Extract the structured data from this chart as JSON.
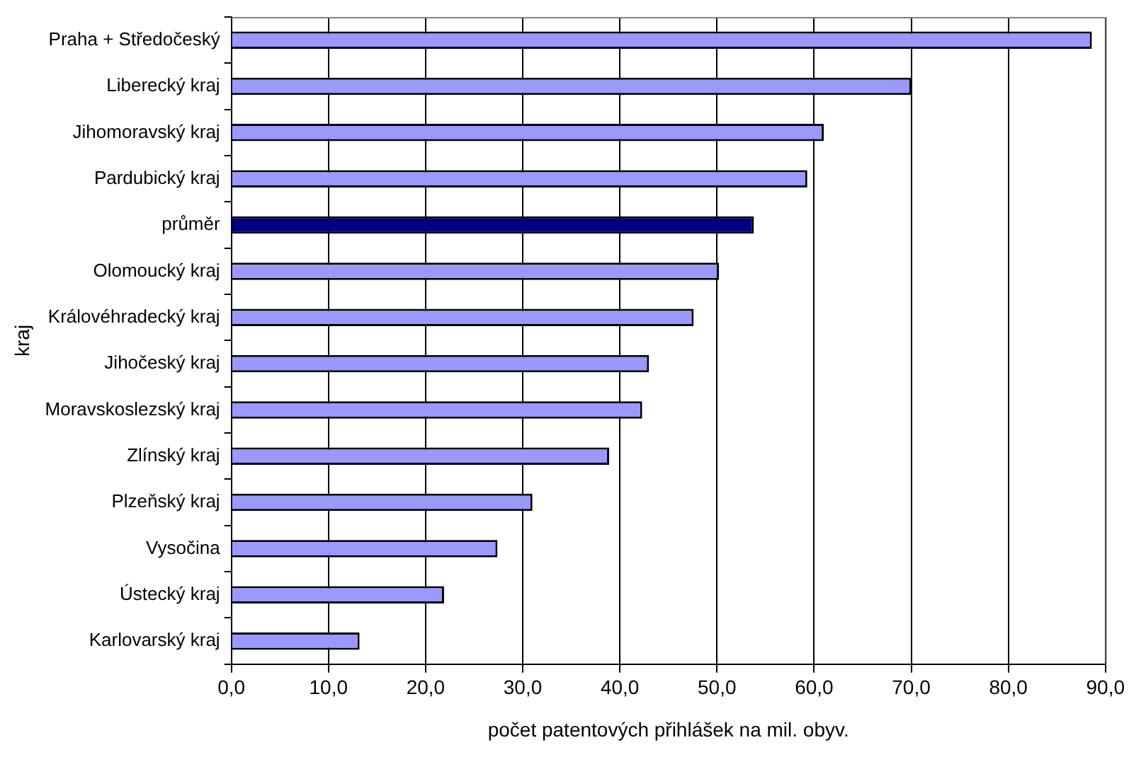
{
  "chart_data": {
    "type": "bar",
    "orientation": "horizontal",
    "xlabel": "počet patentových přihlášek na mil. obyv.",
    "ylabel": "kraj",
    "categories": [
      "Praha + Středočeský",
      "Liberecký kraj",
      "Jihomoravský kraj",
      "Pardubický kraj",
      "průměr",
      "Olomoucký kraj",
      "Královéhradecký kraj",
      "Jihočeský kraj",
      "Moravskoslezský kraj",
      "Zlínský kraj",
      "Plzeňský kraj",
      "Vysočina",
      "Ústecký kraj",
      "Karlovarský kraj"
    ],
    "values": [
      88.6,
      70.0,
      61.0,
      59.3,
      53.8,
      50.2,
      47.6,
      43.0,
      42.3,
      38.9,
      31.0,
      27.4,
      21.9,
      13.2
    ],
    "colors": [
      "#9999ff",
      "#9999ff",
      "#9999ff",
      "#9999ff",
      "#000080",
      "#9999ff",
      "#9999ff",
      "#9999ff",
      "#9999ff",
      "#9999ff",
      "#9999ff",
      "#9999ff",
      "#9999ff",
      "#9999ff"
    ],
    "xlim": [
      0,
      90
    ],
    "xticks": [
      {
        "value": 0,
        "label": "0,0"
      },
      {
        "value": 10,
        "label": "10,0"
      },
      {
        "value": 20,
        "label": "20,0"
      },
      {
        "value": 30,
        "label": "30,0"
      },
      {
        "value": 40,
        "label": "40,0"
      },
      {
        "value": 50,
        "label": "50,0"
      },
      {
        "value": 60,
        "label": "60,0"
      },
      {
        "value": 70,
        "label": "70,0"
      },
      {
        "value": 80,
        "label": "80,0"
      },
      {
        "value": 90,
        "label": "90,0"
      }
    ],
    "grid": "x",
    "legend": false
  }
}
